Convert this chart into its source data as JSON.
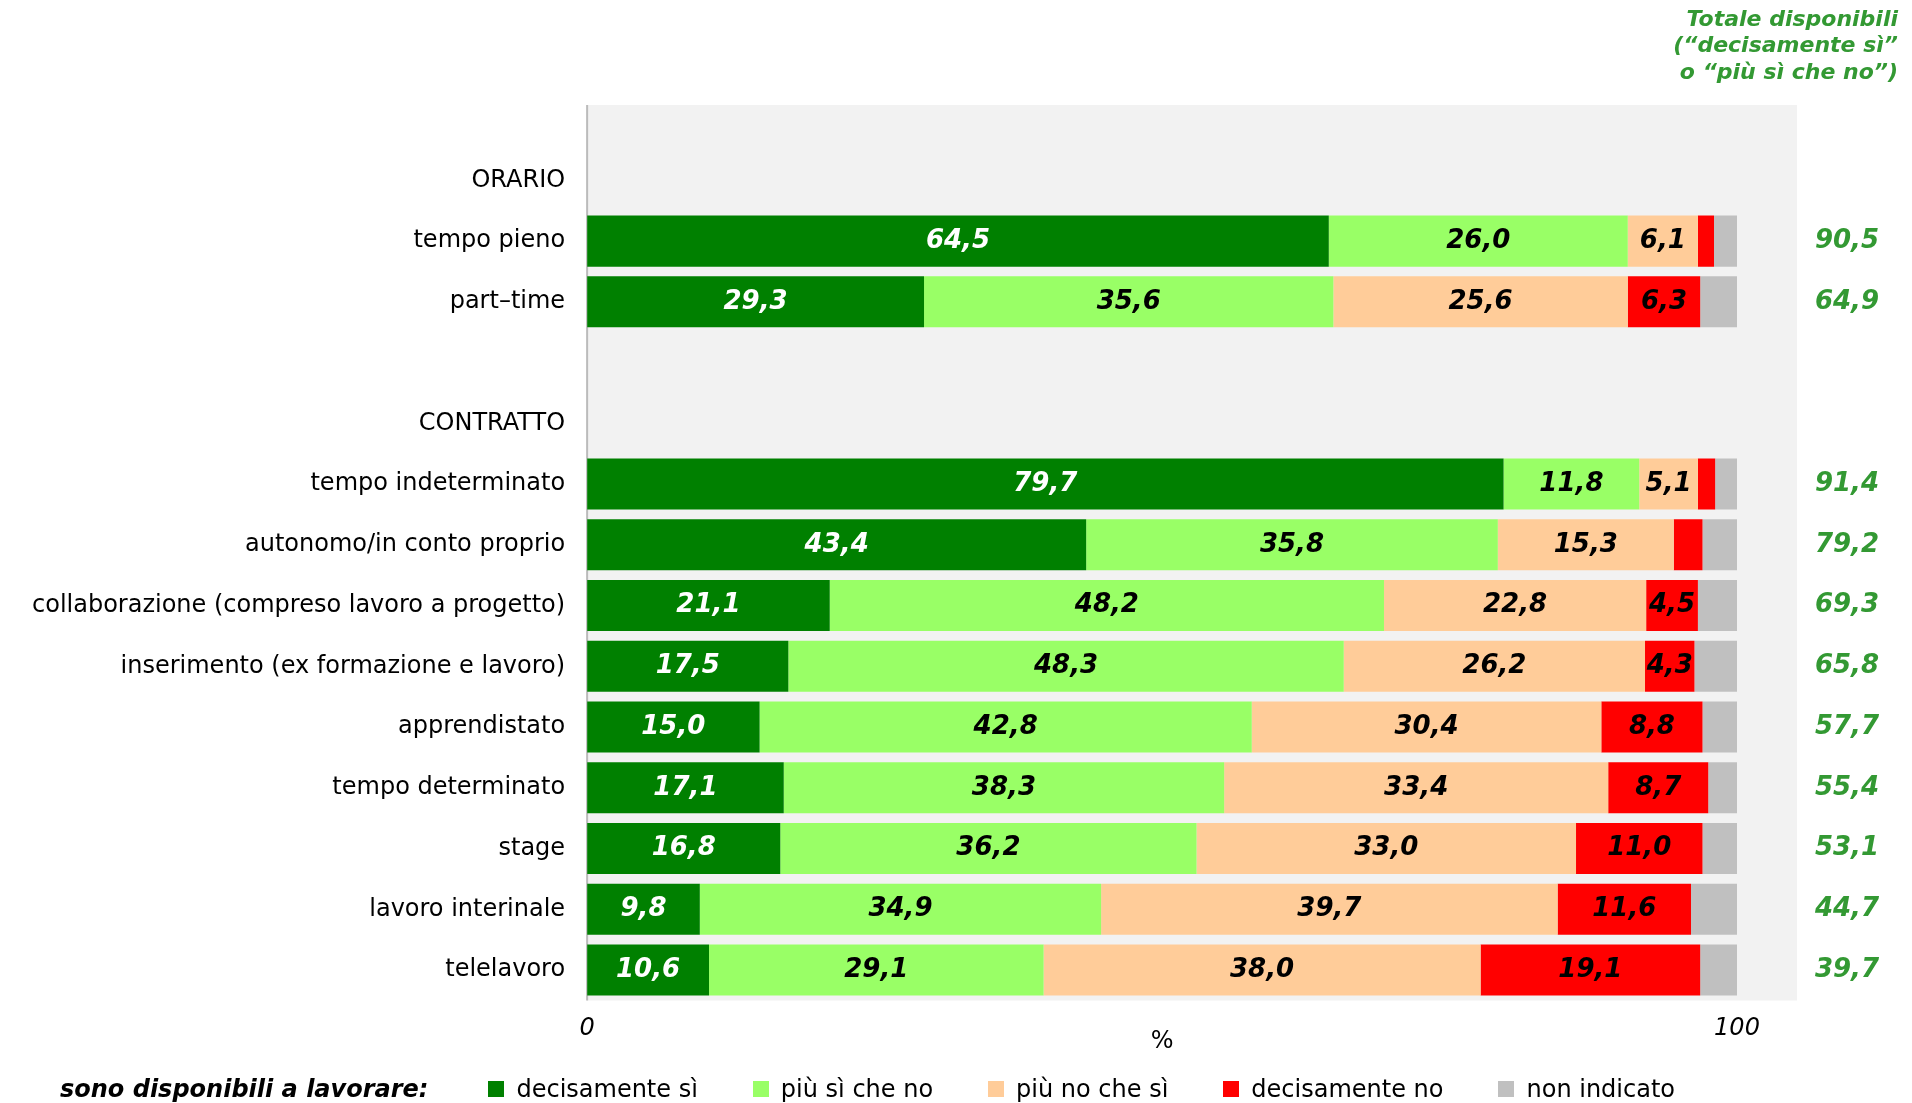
{
  "chart_data": {
    "type": "bar",
    "orientation": "horizontal",
    "stacked": true,
    "categories": [
      "ORARIO",
      "tempo pieno",
      "part–time",
      null,
      "CONTRATTO",
      "tempo indeterminato",
      "autonomo/in conto proprio",
      "collaborazione (compreso lavoro a progetto)",
      "inserimento (ex formazione e lavoro)",
      "apprendistato",
      "tempo determinato",
      "stage",
      "lavoro interinale",
      "telelavoro"
    ],
    "series": [
      {
        "name": "decisamente sì",
        "color": "#008000",
        "values": [
          null,
          64.5,
          29.3,
          null,
          null,
          79.7,
          43.4,
          21.1,
          17.5,
          15.0,
          17.1,
          16.8,
          9.8,
          10.6
        ],
        "value_labels": [
          null,
          "64,5",
          "29,3",
          null,
          null,
          "79,7",
          "43,4",
          "21,1",
          "17,5",
          "15,0",
          "17,1",
          "16,8",
          "9,8",
          "10,6"
        ]
      },
      {
        "name": "più sì che no",
        "color": "#99ff66",
        "values": [
          null,
          26.0,
          35.6,
          null,
          null,
          11.8,
          35.8,
          48.2,
          48.3,
          42.8,
          38.3,
          36.2,
          34.9,
          29.1
        ],
        "value_labels": [
          null,
          "26,0",
          "35,6",
          null,
          null,
          "11,8",
          "35,8",
          "48,2",
          "48,3",
          "42,8",
          "38,3",
          "36,2",
          "34,9",
          "29,1"
        ]
      },
      {
        "name": "più no che sì",
        "color": "#ffcc99",
        "values": [
          null,
          6.1,
          25.6,
          null,
          null,
          5.1,
          15.3,
          22.8,
          26.2,
          30.4,
          33.4,
          33.0,
          39.7,
          38.0
        ],
        "value_labels": [
          null,
          "6,1",
          "25,6",
          null,
          null,
          "5,1",
          "15,3",
          "22,8",
          "26,2",
          "30,4",
          "33,4",
          "33,0",
          "39,7",
          "38,0"
        ]
      },
      {
        "name": "decisamente no",
        "color": "#ff0000",
        "values": [
          null,
          1.4,
          6.3,
          null,
          null,
          1.5,
          2.5,
          4.5,
          4.3,
          8.8,
          8.7,
          11.0,
          11.6,
          19.1
        ],
        "value_labels": [
          null,
          null,
          "6,3",
          null,
          null,
          null,
          null,
          "4,5",
          "4,3",
          "8,8",
          "8,7",
          "11,0",
          "11,6",
          "19,1"
        ]
      },
      {
        "name": "non indicato",
        "color": "#c0c0c0",
        "values": [
          null,
          2.0,
          3.2,
          null,
          null,
          1.9,
          3.0,
          3.4,
          3.7,
          3.0,
          2.5,
          3.0,
          4.0,
          3.2
        ]
      }
    ],
    "xlim": [
      0,
      100
    ],
    "xticks": [
      0,
      100
    ],
    "xlabel": "%",
    "grid": false,
    "legend": "bottom",
    "legend_title": "sono disponibili a lavorare:",
    "annotations": [
      "Totale disponibili\n(“decisamente sì”\no “più sì che no”)",
      "90,5",
      "64,9",
      "91,4",
      "79,2",
      "69,3",
      "65,8",
      "57,7",
      "55,4",
      "53,1",
      "44,7",
      "39,7"
    ]
  }
}
